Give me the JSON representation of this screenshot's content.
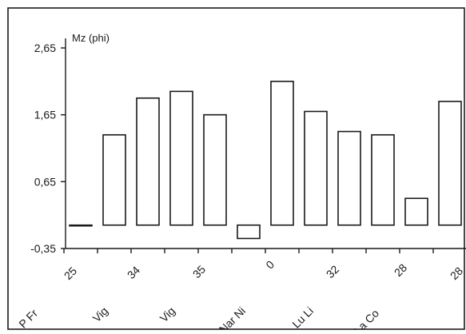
{
  "chart_data": {
    "type": "bar",
    "ylabel": "Mz (phi)",
    "ylim": [
      -0.35,
      2.9
    ],
    "yticks": [
      "2,65",
      "1,65",
      "0,65",
      "-0,35"
    ],
    "ytick_values": [
      2.65,
      1.65,
      0.65,
      -0.35
    ],
    "baseline": 0,
    "values": [
      0.0,
      1.35,
      1.9,
      2.0,
      1.65,
      -0.2,
      2.15,
      1.7,
      1.4,
      1.35,
      0.4,
      1.85
    ],
    "group_labels": [
      "P Fr",
      "Vig",
      "Vig",
      "Nar Ni",
      "Lu Li",
      "La Co"
    ],
    "number_labels": [
      "25",
      "34",
      "35",
      "0",
      "32",
      "28",
      "28"
    ]
  }
}
